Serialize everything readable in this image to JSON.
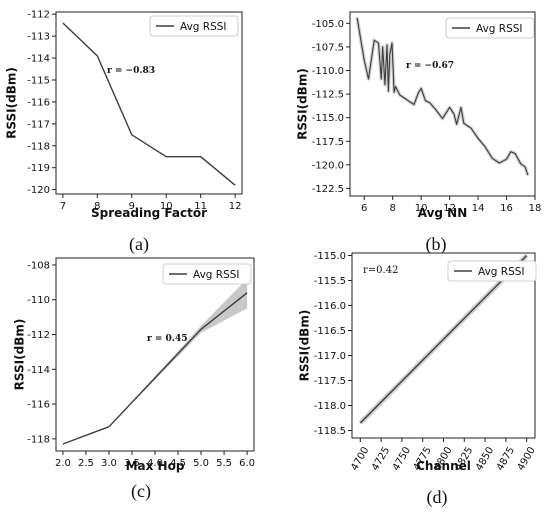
{
  "chart_data": [
    {
      "panel": "(a)",
      "type": "line",
      "xlabel": "Spreading Factor",
      "ylabel": "RSSI(dBm)",
      "legend": "Avg RSSI",
      "annotation": "r = −0.83",
      "x": [
        7,
        8,
        9,
        10,
        11,
        12
      ],
      "y": [
        -112.4,
        -113.9,
        -117.5,
        -118.5,
        -118.5,
        -119.8
      ],
      "xticks": [
        7,
        8,
        9,
        10,
        11,
        12
      ],
      "yticks": [
        -112,
        -113,
        -114,
        -115,
        -116,
        -117,
        -118,
        -119,
        -120
      ],
      "xlim": [
        6.8,
        12.2
      ],
      "ylim": [
        -120.2,
        -111.9
      ]
    },
    {
      "panel": "(b)",
      "type": "line",
      "xlabel": "Avg NN",
      "ylabel": "RSSI(dBm)",
      "legend": "Avg RSSI",
      "annotation": "r = −0.67",
      "x": [
        5.5,
        6.0,
        6.3,
        6.7,
        7.0,
        7.2,
        7.3,
        7.45,
        7.6,
        7.7,
        7.8,
        7.95,
        8.1,
        8.2,
        8.5,
        9.0,
        9.5,
        9.8,
        10.0,
        10.3,
        10.6,
        11.0,
        11.5,
        12.0,
        12.3,
        12.5,
        12.8,
        13.0,
        13.5,
        14.0,
        14.5,
        15.0,
        15.5,
        16.0,
        16.3,
        16.6,
        17.0,
        17.3,
        17.5
      ],
      "y": [
        -104.4,
        -108.9,
        -110.9,
        -106.8,
        -107.1,
        -110.9,
        -107.5,
        -111.5,
        -107.3,
        -112.2,
        -108.3,
        -107.1,
        -112.3,
        -111.7,
        -112.6,
        -113.1,
        -113.6,
        -112.4,
        -111.9,
        -113.2,
        -113.4,
        -114.1,
        -115.1,
        -113.9,
        -114.6,
        -115.7,
        -113.9,
        -115.6,
        -116.1,
        -117.2,
        -118.1,
        -119.3,
        -119.8,
        -119.4,
        -118.6,
        -118.8,
        -119.9,
        -120.2,
        -121.1
      ],
      "xticks": [
        6,
        8,
        10,
        12,
        14,
        16,
        18
      ],
      "yticks": [
        -105.0,
        -107.5,
        -110.0,
        -112.5,
        -115.0,
        -117.5,
        -120.0,
        -122.5
      ],
      "xlim": [
        5.0,
        18.0
      ],
      "ylim": [
        -123.3,
        -103.8
      ]
    },
    {
      "panel": "(c)",
      "type": "line",
      "xlabel": "Max Hop",
      "ylabel": "RSSI(dBm)",
      "legend": "Avg RSSI",
      "annotation": "r = 0.45",
      "x": [
        2.0,
        3.0,
        4.0,
        5.0,
        6.0
      ],
      "y": [
        -118.3,
        -117.3,
        -114.5,
        -111.7,
        -109.6
      ],
      "band_low": [
        -118.3,
        -117.3,
        -114.6,
        -111.9,
        -110.5
      ],
      "band_high": [
        -118.3,
        -117.3,
        -114.4,
        -111.5,
        -108.8
      ],
      "xticks": [
        2.0,
        2.5,
        3.0,
        3.5,
        4.0,
        4.5,
        5.0,
        5.5,
        6.0
      ],
      "yticks": [
        -108,
        -110,
        -112,
        -114,
        -116,
        -118
      ],
      "xlim": [
        1.85,
        6.15
      ],
      "ylim": [
        -118.7,
        -107.6
      ]
    },
    {
      "panel": "(d)",
      "type": "line",
      "xlabel": "Channel",
      "ylabel": "RSSI(dBm)",
      "legend": "Avg RSSI",
      "annotation": "r=0.42",
      "x": [
        4700,
        4900
      ],
      "y": [
        -118.35,
        -115.0
      ],
      "xticks": [
        4700,
        4725,
        4750,
        4775,
        4800,
        4825,
        4850,
        4875,
        4900
      ],
      "yticks": [
        -115.0,
        -115.5,
        -116.0,
        -116.5,
        -117.0,
        -117.5,
        -118.0,
        -118.5
      ],
      "xlim": [
        4690,
        4910
      ],
      "ylim": [
        -118.65,
        -114.95
      ]
    }
  ]
}
